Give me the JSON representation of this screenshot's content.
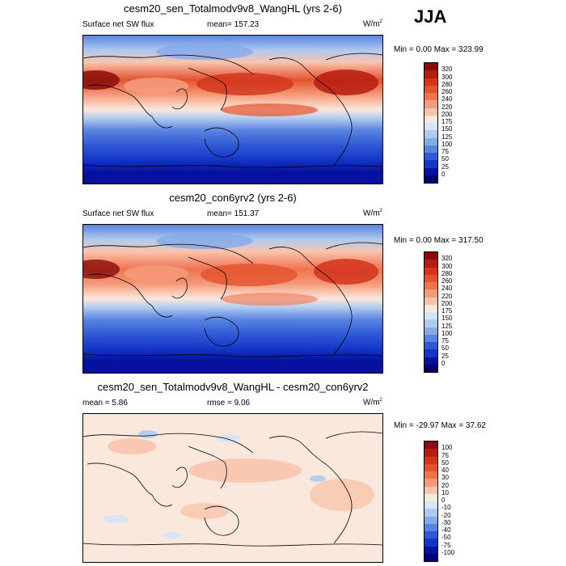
{
  "season": "JJA",
  "panels": [
    {
      "title": "cesm20_sen_Totalmodv9v8_WangHL (yrs 2-6)",
      "left_label": "Surface net SW flux",
      "center_label": "mean= 157.23",
      "units_base": "W/m",
      "units_sup": "2",
      "minmax": "Min =   0.00 Max = 323.99",
      "legend": [
        "320",
        "300",
        "280",
        "260",
        "240",
        "220",
        "200",
        "175",
        "150",
        "125",
        "100",
        "75",
        "50",
        "25",
        "0"
      ]
    },
    {
      "title": "cesm20_con6yrv2 (yrs 2-6)",
      "left_label": "Surface net SW flux",
      "center_label": "mean= 151.37",
      "units_base": "W/m",
      "units_sup": "2",
      "minmax": "Min =   0.00 Max = 317.50",
      "legend": [
        "320",
        "300",
        "280",
        "260",
        "240",
        "220",
        "200",
        "175",
        "150",
        "125",
        "100",
        "75",
        "50",
        "25",
        "0"
      ]
    },
    {
      "title": "cesm20_sen_Totalmodv9v8_WangHL - cesm20_con6yrv2",
      "left_label": "mean =   5.86",
      "center_label": "rmse =   9.06",
      "units_base": "W/m",
      "units_sup": "2",
      "minmax": "Min = -29.97 Max =  37.62",
      "legend": [
        "100",
        "75",
        "50",
        "40",
        "30",
        "20",
        "10",
        "0",
        "-10",
        "-20",
        "-30",
        "-40",
        "-50",
        "-75",
        "-100"
      ]
    }
  ],
  "colors": {
    "abs_scale": [
      "#8b0a0a",
      "#b71c10",
      "#d2341c",
      "#e4522e",
      "#ef7350",
      "#f59a7a",
      "#f9c4ad",
      "#fbe8dc",
      "#d5e4f7",
      "#afcaf0",
      "#86a9e8",
      "#5a84e0",
      "#2f5ad6",
      "#1435c6",
      "#06129f",
      "#00006e"
    ],
    "diff_scale": [
      "#8b0a0a",
      "#b71c10",
      "#d2341c",
      "#e4522e",
      "#ef7350",
      "#f59a7a",
      "#f9c4ad",
      "#fbe8dc",
      "#d5e4f7",
      "#afcaf0",
      "#86a9e8",
      "#5a84e0",
      "#2f5ad6",
      "#1435c6",
      "#06129f",
      "#00006e"
    ]
  }
}
